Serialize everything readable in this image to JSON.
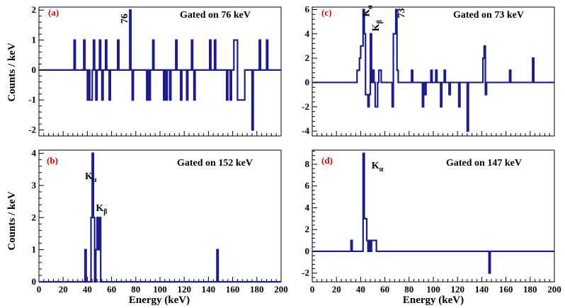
{
  "colors": {
    "histogram": "#1c1c8c",
    "axis": "#000000",
    "panel_letter": "#e00000"
  },
  "chart_data": [
    {
      "type": "histogram",
      "letter": "(a)",
      "title": "Gated on 76 keV",
      "xlabel": "",
      "ylabel": "Counts / keV",
      "xlim": [
        0,
        200
      ],
      "ylim": [
        -2.2,
        2.1
      ],
      "xticks": [
        0,
        20,
        40,
        60,
        80,
        100,
        120,
        140,
        160,
        180,
        200
      ],
      "xtick_labels": [],
      "yticks": [
        -2,
        -1,
        0,
        1,
        2
      ],
      "ytick_labels": [
        "-2",
        "-1",
        "0",
        "1",
        "2"
      ],
      "bin_width": 1,
      "bins": [
        [
          29,
          1
        ],
        [
          37,
          1
        ],
        [
          40,
          -1
        ],
        [
          42,
          -1
        ],
        [
          43,
          -1
        ],
        [
          45,
          1
        ],
        [
          47,
          -1
        ],
        [
          50,
          1
        ],
        [
          52,
          -1
        ],
        [
          55,
          1
        ],
        [
          58,
          -1
        ],
        [
          65,
          1
        ],
        [
          75,
          2
        ],
        [
          77,
          -1
        ],
        [
          89,
          -1
        ],
        [
          91,
          -1
        ],
        [
          94,
          1
        ],
        [
          103,
          -1
        ],
        [
          105,
          -1
        ],
        [
          108,
          -1
        ],
        [
          113,
          1
        ],
        [
          117,
          -1
        ],
        [
          122,
          -1
        ],
        [
          126,
          1
        ],
        [
          128,
          -1
        ],
        [
          141,
          1
        ],
        [
          145,
          1
        ],
        [
          155,
          -1
        ],
        [
          158,
          -1
        ],
        [
          161,
          1
        ],
        [
          162,
          1
        ],
        [
          163,
          1
        ],
        [
          164,
          -1
        ],
        [
          165,
          -1
        ],
        [
          166,
          -1
        ],
        [
          167,
          -1
        ],
        [
          168,
          -1
        ],
        [
          169,
          -1
        ],
        [
          176,
          -2
        ],
        [
          182,
          1
        ],
        [
          188,
          1
        ]
      ],
      "annotations": [
        {
          "text": "76",
          "x": 73,
          "y": 1.55,
          "vertical": true
        }
      ]
    },
    {
      "type": "histogram",
      "letter": "(c)",
      "title": "Gated on 73 keV",
      "xlabel": "",
      "ylabel": "",
      "xlim": [
        0,
        200
      ],
      "ylim": [
        -4.4,
        6.2
      ],
      "xticks": [
        0,
        20,
        40,
        60,
        80,
        100,
        120,
        140,
        160,
        180,
        200
      ],
      "xtick_labels": [],
      "yticks": [
        -4,
        -2,
        0,
        2,
        4,
        6
      ],
      "ytick_labels": [
        "-4",
        "-2",
        "0",
        "2",
        "4",
        "6"
      ],
      "bin_width": 1,
      "bins": [
        [
          37,
          1
        ],
        [
          38,
          1
        ],
        [
          39,
          2
        ],
        [
          40,
          3
        ],
        [
          41,
          3
        ],
        [
          42,
          6
        ],
        [
          43,
          4
        ],
        [
          44,
          -1
        ],
        [
          45,
          -1
        ],
        [
          46,
          -2
        ],
        [
          47,
          -1
        ],
        [
          48,
          4
        ],
        [
          50,
          1
        ],
        [
          52,
          -2
        ],
        [
          53,
          -2
        ],
        [
          55,
          1
        ],
        [
          56,
          1
        ],
        [
          66,
          -2
        ],
        [
          67,
          4
        ],
        [
          68,
          4
        ],
        [
          69,
          6
        ],
        [
          70,
          1
        ],
        [
          82,
          1
        ],
        [
          91,
          -2
        ],
        [
          93,
          -1
        ],
        [
          98,
          1
        ],
        [
          102,
          1
        ],
        [
          106,
          -2
        ],
        [
          109,
          1
        ],
        [
          113,
          -1
        ],
        [
          121,
          -2
        ],
        [
          128,
          -4
        ],
        [
          141,
          2
        ],
        [
          142,
          3
        ],
        [
          143,
          -1
        ],
        [
          163,
          1
        ],
        [
          182,
          2
        ]
      ],
      "annotations": [
        {
          "text": "K",
          "sub": "α",
          "x": 47,
          "y": 5.4,
          "vertical": true
        },
        {
          "text": "K",
          "sub": "β",
          "x": 55,
          "y": 4.2,
          "vertical": true
        },
        {
          "text": "73",
          "x": 76,
          "y": 5.3,
          "vertical": true
        }
      ]
    },
    {
      "type": "histogram",
      "letter": "(b)",
      "title": "Gated on 152 keV",
      "xlabel": "Energy (keV)",
      "ylabel": "Counts / keV",
      "xlim": [
        0,
        200
      ],
      "ylim": [
        0,
        4.1
      ],
      "xticks": [
        0,
        20,
        40,
        60,
        80,
        100,
        120,
        140,
        160,
        180,
        200
      ],
      "xtick_labels": [
        "0",
        "20",
        "40",
        "60",
        "80",
        "100",
        "120",
        "140",
        "160",
        "180",
        "200"
      ],
      "yticks": [
        0,
        1,
        2,
        3,
        4
      ],
      "ytick_labels": [
        "0",
        "1",
        "2",
        "3",
        "4"
      ],
      "bin_width": 1,
      "bins": [
        [
          38,
          1
        ],
        [
          43,
          2
        ],
        [
          44,
          4
        ],
        [
          45,
          2
        ],
        [
          47,
          1
        ],
        [
          48,
          2
        ],
        [
          49,
          1
        ],
        [
          50,
          2
        ],
        [
          147,
          1
        ]
      ],
      "annotations": [
        {
          "text": "K",
          "sub": "α",
          "x": 38,
          "y": 3.2,
          "vertical": false
        },
        {
          "text": "K",
          "sub": "β",
          "x": 47,
          "y": 2.2,
          "vertical": false
        }
      ]
    },
    {
      "type": "histogram",
      "letter": "(d)",
      "title": "Gated on 147 keV",
      "xlabel": "Energy (keV)",
      "ylabel": "",
      "xlim": [
        0,
        200
      ],
      "ylim": [
        -2.8,
        9.3
      ],
      "xticks": [
        0,
        20,
        40,
        60,
        80,
        100,
        120,
        140,
        160,
        180,
        200
      ],
      "xtick_labels": [
        "0",
        "20",
        "40",
        "60",
        "80",
        "100",
        "120",
        "140",
        "160",
        "180",
        "200"
      ],
      "yticks": [
        -2,
        0,
        2,
        4,
        6,
        8
      ],
      "ytick_labels": [
        "-2",
        "0",
        "2",
        "4",
        "6",
        "8"
      ],
      "bin_width": 1,
      "bins": [
        [
          32,
          1
        ],
        [
          42,
          9
        ],
        [
          43,
          3
        ],
        [
          44,
          3
        ],
        [
          45,
          1
        ],
        [
          47,
          1
        ],
        [
          49,
          1
        ],
        [
          50,
          1
        ],
        [
          51,
          1
        ],
        [
          52,
          1
        ],
        [
          146,
          -2
        ]
      ],
      "annotations": [
        {
          "text": "K",
          "sub": "α",
          "x": 49,
          "y": 7.6,
          "vertical": false
        }
      ]
    }
  ]
}
